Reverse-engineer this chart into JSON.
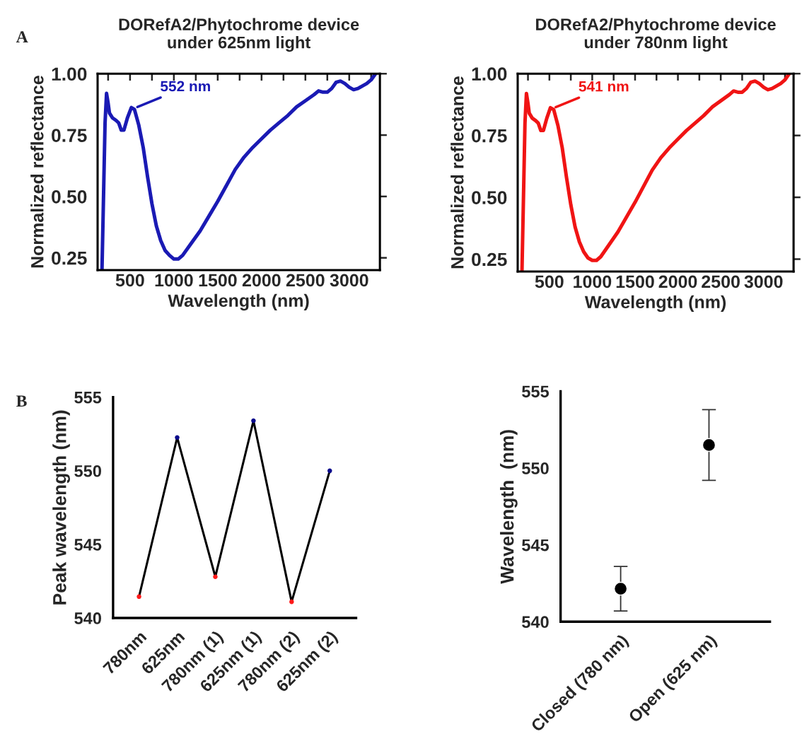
{
  "chart_data": [
    {
      "type": "line",
      "title": "DORefA2/Phytochrome device\nunder 625nm light",
      "xlabel": "Wavelength (nm)",
      "ylabel": "Normalized reflectance",
      "xlim": [
        130,
        3350
      ],
      "ylim": [
        0.2,
        1.0
      ],
      "xticks": [
        {
          "value": 250,
          "label": null
        },
        500,
        {
          "value": 750,
          "label": null
        },
        1000,
        {
          "value": 1250,
          "label": null
        },
        1500,
        {
          "value": 1750,
          "label": null
        },
        2000,
        {
          "value": 2250,
          "label": null
        },
        2500,
        {
          "value": 2750,
          "label": null
        },
        3000,
        {
          "value": 3250,
          "label": null
        }
      ],
      "yticks": [
        {
          "value": 0.25,
          "label": "0.25"
        },
        {
          "value": 0.5,
          "label": "0.50"
        },
        {
          "value": 0.75,
          "label": "0.75"
        },
        {
          "value": 1.0,
          "label": "1.00"
        }
      ],
      "series": [
        {
          "color": "#1a1ab4",
          "x": [
            180,
            215,
            232,
            250,
            265,
            300,
            340,
            370,
            400,
            430,
            470,
            515,
            550,
            600,
            650,
            700,
            750,
            800,
            850,
            900,
            950,
            1000,
            1050,
            1100,
            1200,
            1300,
            1400,
            1500,
            1600,
            1700,
            1800,
            1900,
            2000,
            2100,
            2200,
            2300,
            2400,
            2500,
            2600,
            2650,
            2700,
            2750,
            2800,
            2850,
            2900,
            2950,
            3000,
            3050,
            3100,
            3200,
            3250,
            3300
          ],
          "values": [
            0.2,
            0.8,
            0.92,
            0.88,
            0.84,
            0.82,
            0.81,
            0.8,
            0.77,
            0.77,
            0.82,
            0.862,
            0.855,
            0.79,
            0.7,
            0.58,
            0.47,
            0.38,
            0.32,
            0.28,
            0.26,
            0.245,
            0.245,
            0.26,
            0.31,
            0.36,
            0.42,
            0.48,
            0.545,
            0.61,
            0.66,
            0.7,
            0.735,
            0.77,
            0.8,
            0.83,
            0.865,
            0.89,
            0.915,
            0.93,
            0.925,
            0.925,
            0.94,
            0.965,
            0.97,
            0.96,
            0.945,
            0.935,
            0.94,
            0.96,
            0.975,
            1.0
          ]
        }
      ],
      "annotations": [
        "A",
        {
          "text": "552 nm",
          "x": 552,
          "y": 0.86
        }
      ]
    },
    {
      "type": "line",
      "title": "DORefA2/Phytochrome device\nunder 780nm light",
      "xlabel": "Wavelength (nm)",
      "ylabel": "Normalized reflectance",
      "xlim": [
        130,
        3350
      ],
      "ylim": [
        0.2,
        1.0
      ],
      "xticks": [
        {
          "value": 250,
          "label": null
        },
        500,
        {
          "value": 750,
          "label": null
        },
        1000,
        {
          "value": 1250,
          "label": null
        },
        1500,
        {
          "value": 1750,
          "label": null
        },
        2000,
        {
          "value": 2250,
          "label": null
        },
        2500,
        {
          "value": 2750,
          "label": null
        },
        3000,
        {
          "value": 3250,
          "label": null
        }
      ],
      "yticks": [
        {
          "value": 0.25,
          "label": "0.25"
        },
        {
          "value": 0.5,
          "label": "0.50"
        },
        {
          "value": 0.75,
          "label": "0.75"
        },
        {
          "value": 1.0,
          "label": "1.00"
        }
      ],
      "series": [
        {
          "color": "#f01414",
          "x": [
            180,
            215,
            232,
            250,
            265,
            300,
            340,
            370,
            400,
            430,
            470,
            512,
            550,
            600,
            650,
            700,
            750,
            800,
            850,
            900,
            950,
            1000,
            1050,
            1100,
            1200,
            1300,
            1400,
            1500,
            1600,
            1700,
            1800,
            1900,
            2000,
            2100,
            2200,
            2300,
            2400,
            2500,
            2600,
            2650,
            2700,
            2750,
            2800,
            2850,
            2900,
            2950,
            3000,
            3050,
            3100,
            3200,
            3250,
            3300
          ],
          "values": [
            0.2,
            0.8,
            0.92,
            0.88,
            0.84,
            0.82,
            0.81,
            0.8,
            0.77,
            0.77,
            0.82,
            0.862,
            0.855,
            0.79,
            0.7,
            0.58,
            0.47,
            0.38,
            0.32,
            0.28,
            0.255,
            0.245,
            0.245,
            0.26,
            0.31,
            0.36,
            0.42,
            0.48,
            0.545,
            0.61,
            0.66,
            0.7,
            0.735,
            0.77,
            0.8,
            0.83,
            0.865,
            0.89,
            0.915,
            0.93,
            0.925,
            0.925,
            0.94,
            0.965,
            0.97,
            0.96,
            0.945,
            0.935,
            0.94,
            0.96,
            0.975,
            1.0
          ]
        }
      ],
      "annotations": [
        {
          "text": "541 nm",
          "x": 541,
          "y": 0.86
        }
      ]
    },
    {
      "type": "line",
      "ylabel": "Peak wavelength (nm)",
      "categories": [
        "780nm",
        "625nm",
        "780nm (1)",
        "625nm (1)",
        "780nm (2)",
        "625nm (2)"
      ],
      "ylim": [
        540,
        555
      ],
      "yticks": [
        540,
        545,
        550,
        555
      ],
      "marker": "circle",
      "series": [
        {
          "color": "#000000",
          "colors": [
            "#ff1a1a",
            "#0a0a8c",
            "#ff1a1a",
            "#0a0a8c",
            "#ff1a1a",
            "#0a0a8c"
          ],
          "values": [
            541.45,
            552.26,
            542.8,
            553.4,
            541.1,
            550.0
          ]
        }
      ],
      "annotations": [
        "B"
      ]
    },
    {
      "type": "scatter",
      "ylabel": "Wavelength  (nm)",
      "categories": [
        "Closed (780 nm)",
        "Open (625 nm)"
      ],
      "ylim": [
        540,
        555
      ],
      "yticks": [
        540,
        545,
        550,
        555
      ],
      "marker": "circle",
      "series": [
        {
          "color": "#000000",
          "values": [
            542.15,
            551.5
          ],
          "errors": [
            [
              540.7,
              543.6
            ],
            [
              549.2,
              553.8
            ]
          ]
        }
      ]
    }
  ]
}
